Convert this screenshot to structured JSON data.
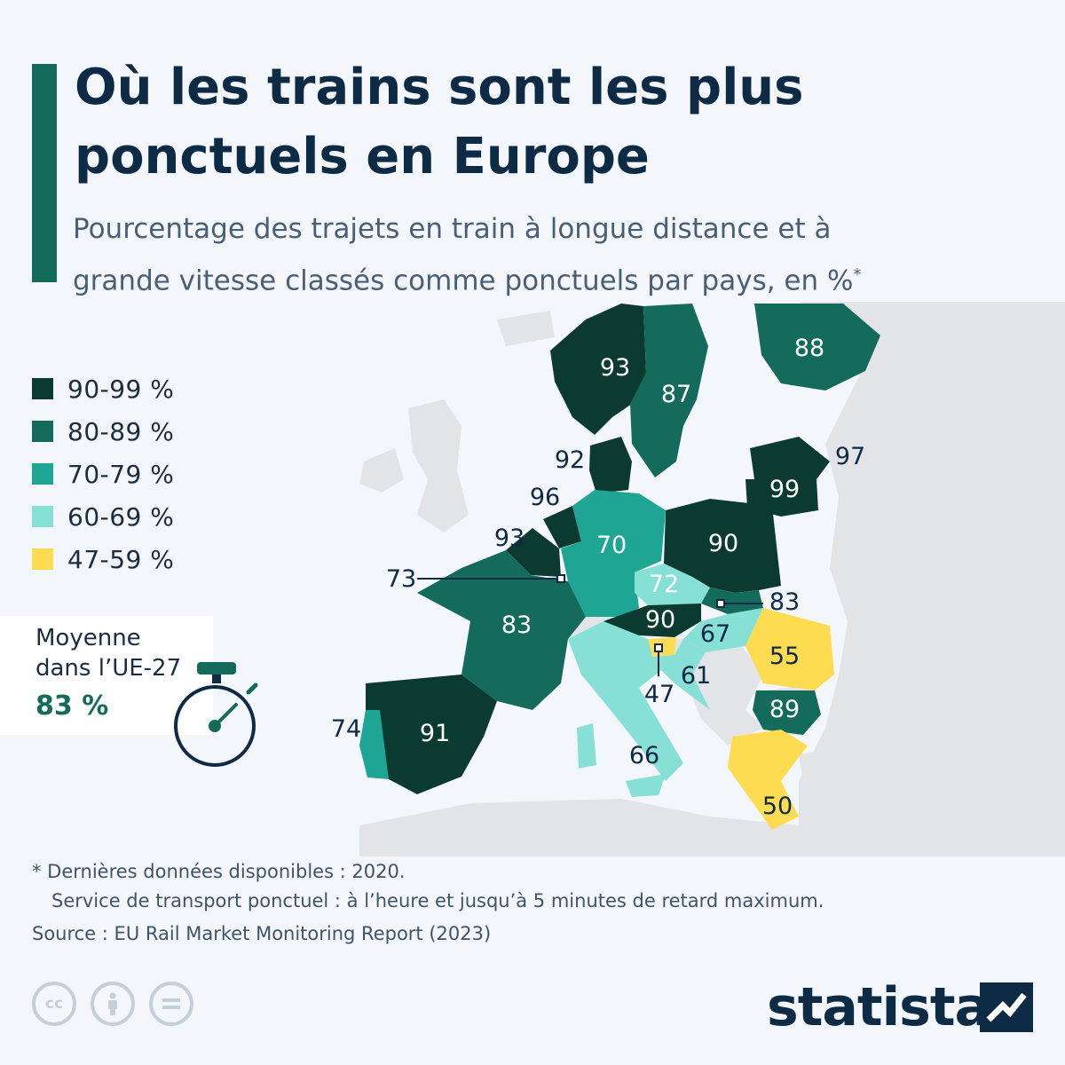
{
  "header": {
    "title_line1": "Où les trains sont les plus",
    "title_line2": "ponctuels en Europe",
    "subtitle_line1": "Pourcentage des trajets en train à longue distance et à",
    "subtitle_line2": "grande vitesse classés comme ponctuels par pays, en %",
    "subtitle_mark": "*"
  },
  "legend": [
    {
      "label": "90-99 %",
      "color": "#0b3a30"
    },
    {
      "label": "80-89 %",
      "color": "#156b5b"
    },
    {
      "label": "70-79 %",
      "color": "#1ea593"
    },
    {
      "label": "60-69 %",
      "color": "#86e0d6"
    },
    {
      "label": "47-59 %",
      "color": "#fddc52"
    }
  ],
  "average": {
    "label_line1": "Moyenne",
    "label_line2": "dans l’UE-27",
    "value": "83 %"
  },
  "map_values": {
    "norway": "93",
    "sweden": "87",
    "finland": "88",
    "denmark": "92",
    "lithuania": "97",
    "latvia": "99",
    "netherlands": "96",
    "belgium": "93",
    "luxembourg": "73",
    "germany": "70",
    "poland": "90",
    "czechia": "72",
    "slovakia": "83",
    "austria": "90",
    "hungary": "67",
    "slovenia": "47",
    "croatia": "61",
    "romania": "55",
    "bulgaria": "89",
    "france": "83",
    "italy": "66",
    "greece": "50",
    "spain": "91",
    "portugal": "74"
  },
  "footnotes": {
    "note1": "* Dernières données disponibles : 2020.",
    "note2": "Service de transport ponctuel : à l’heure et jusqu’à 5 minutes de retard maximum.",
    "source": "Source : EU Rail Market Monitoring Report (2023)"
  },
  "license_icons": [
    "cc-icon",
    "attribution-icon",
    "no-derivatives-icon"
  ],
  "brand": "statista"
}
